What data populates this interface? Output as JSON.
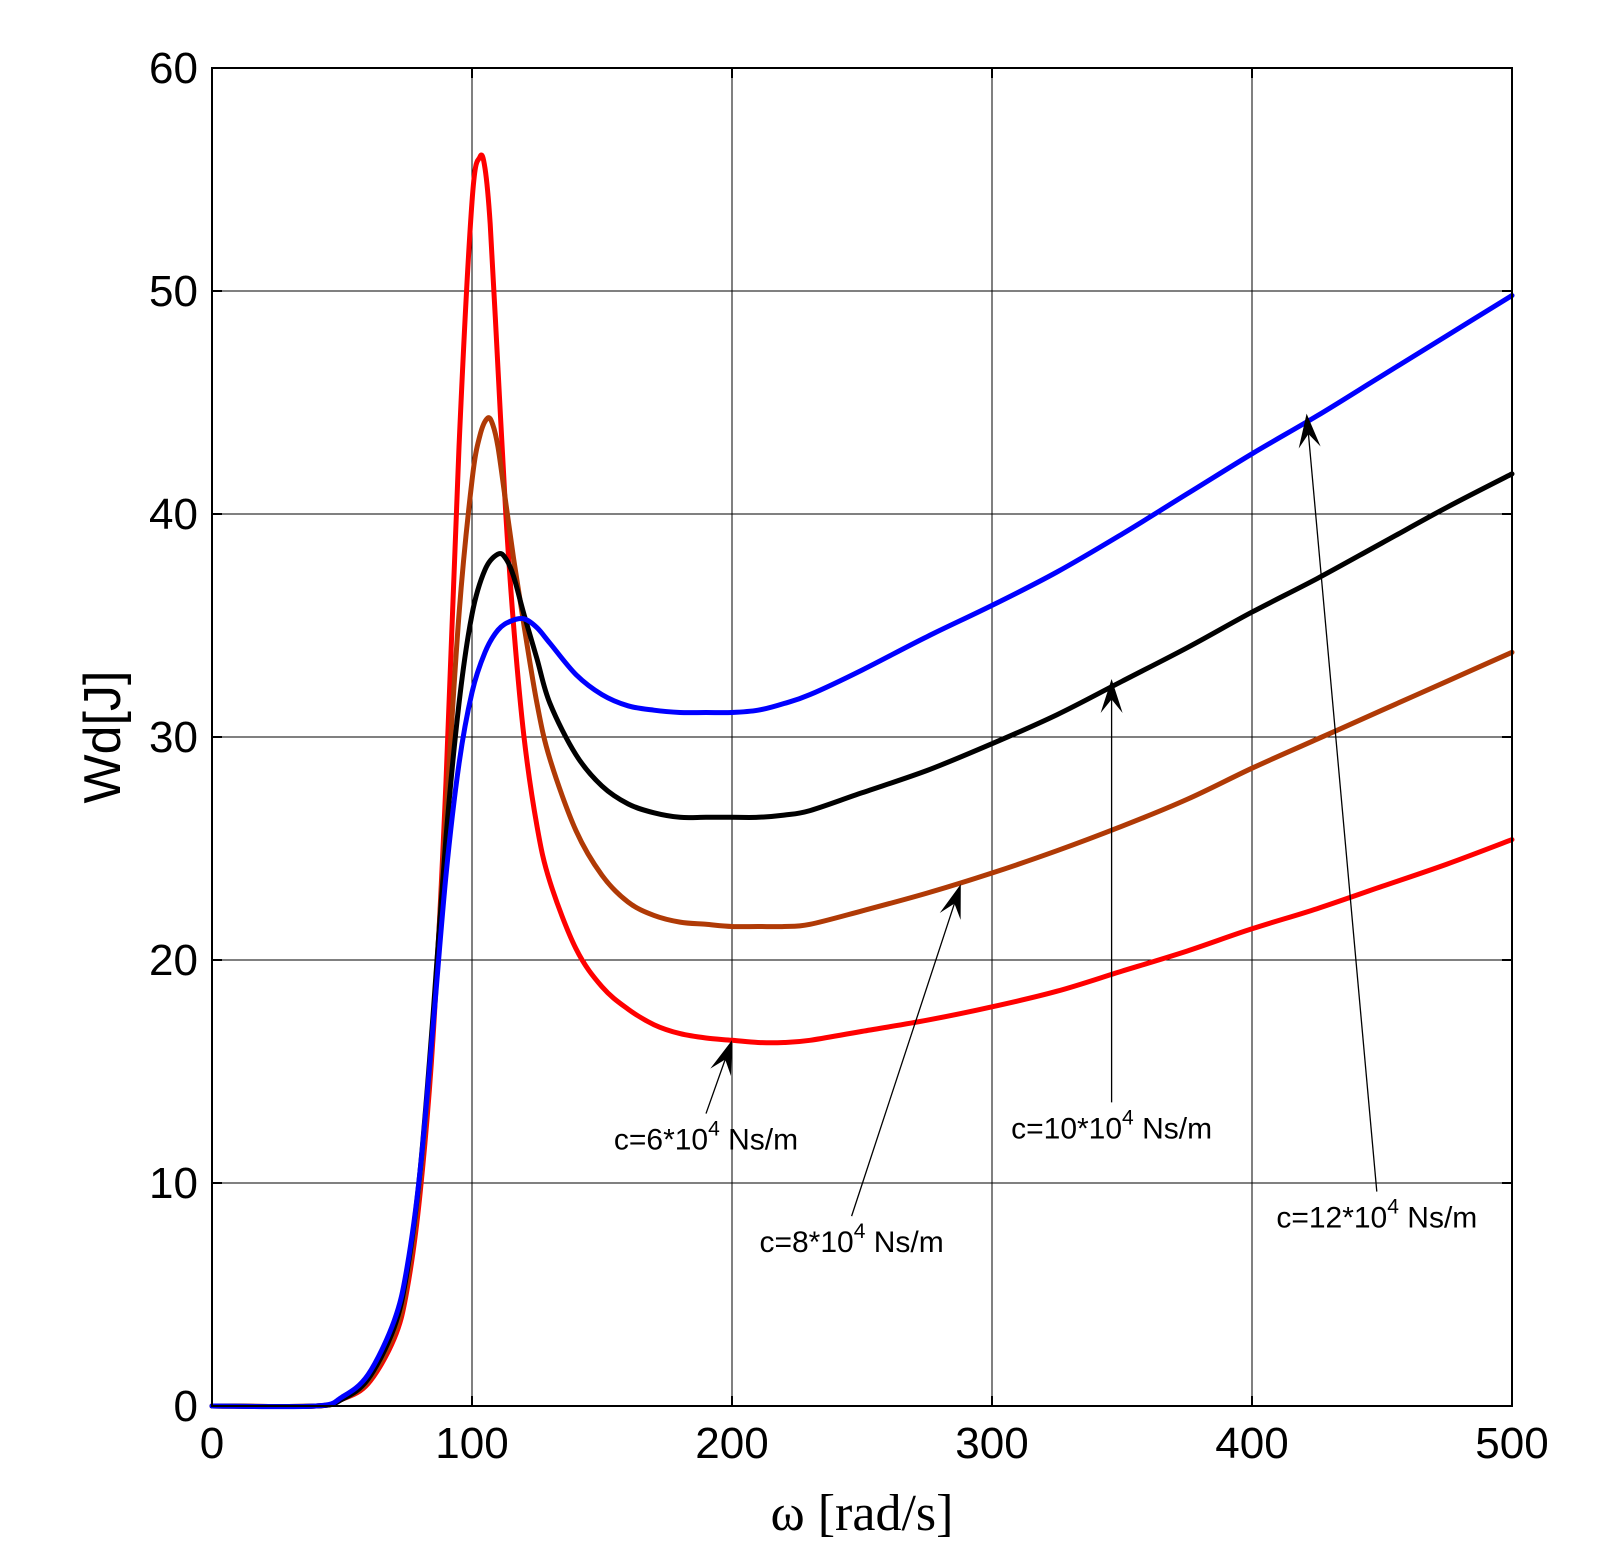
{
  "chart_data": {
    "type": "line",
    "title": "",
    "xlabel": "ω [rad/s]",
    "ylabel": "Wd[J]",
    "xlim": [
      0,
      500
    ],
    "ylim": [
      0,
      60
    ],
    "xticks": [
      "0",
      "100",
      "200",
      "300",
      "400",
      "500"
    ],
    "yticks": [
      "0",
      "10",
      "20",
      "30",
      "40",
      "50",
      "60"
    ],
    "grid": true,
    "legend": "none",
    "series": [
      {
        "name": "c=6*10^4 Ns/m",
        "color": "#ff0000",
        "x": [
          0,
          40,
          50,
          60,
          70,
          75,
          80,
          85,
          90,
          95,
          100,
          103,
          105,
          107,
          110,
          113,
          116,
          120,
          125,
          130,
          140,
          150,
          160,
          170,
          180,
          190,
          200,
          210,
          220,
          230,
          250,
          275,
          300,
          325,
          350,
          375,
          400,
          425,
          450,
          475,
          500
        ],
        "y": [
          0,
          0,
          0.3,
          1.0,
          3.0,
          5.2,
          9.5,
          16.5,
          28.0,
          43.0,
          54.0,
          56.0,
          55.5,
          53.0,
          46.5,
          40.0,
          35.0,
          30.0,
          26.0,
          23.5,
          20.5,
          18.8,
          17.8,
          17.1,
          16.7,
          16.5,
          16.4,
          16.3,
          16.3,
          16.4,
          16.8,
          17.3,
          17.9,
          18.6,
          19.5,
          20.4,
          21.4,
          22.3,
          23.3,
          24.3,
          25.4
        ]
      },
      {
        "name": "c=8*10^4 Ns/m",
        "color": "#b03a06",
        "x": [
          0,
          40,
          50,
          60,
          70,
          75,
          80,
          85,
          90,
          95,
          100,
          103,
          106,
          108,
          110,
          113,
          116,
          120,
          125,
          130,
          140,
          150,
          160,
          170,
          180,
          190,
          200,
          210,
          220,
          230,
          250,
          275,
          300,
          325,
          350,
          375,
          400,
          425,
          450,
          475,
          500
        ],
        "y": [
          0,
          0,
          0.3,
          1.1,
          3.2,
          5.5,
          10.0,
          17.0,
          26.5,
          35.5,
          41.5,
          43.5,
          44.3,
          44.0,
          43.0,
          40.5,
          38.0,
          35.0,
          31.5,
          29.0,
          25.8,
          23.8,
          22.6,
          22.0,
          21.7,
          21.6,
          21.5,
          21.5,
          21.5,
          21.6,
          22.2,
          23.0,
          23.9,
          24.9,
          26.0,
          27.2,
          28.6,
          29.9,
          31.2,
          32.5,
          33.8
        ]
      },
      {
        "name": "c=10*10^4 Ns/m",
        "color": "#000000",
        "x": [
          0,
          40,
          50,
          60,
          70,
          75,
          80,
          85,
          90,
          95,
          100,
          105,
          110,
          113,
          116,
          120,
          125,
          130,
          140,
          150,
          160,
          170,
          180,
          190,
          200,
          210,
          220,
          230,
          250,
          275,
          300,
          325,
          350,
          375,
          400,
          425,
          450,
          475,
          500
        ],
        "y": [
          0,
          0,
          0.3,
          1.2,
          3.5,
          6.0,
          10.5,
          17.5,
          25.5,
          31.5,
          35.5,
          37.5,
          38.2,
          38.0,
          37.2,
          35.5,
          33.5,
          31.5,
          29.2,
          27.8,
          27.0,
          26.6,
          26.4,
          26.4,
          26.4,
          26.4,
          26.5,
          26.7,
          27.5,
          28.5,
          29.7,
          31.0,
          32.5,
          34.0,
          35.6,
          37.1,
          38.7,
          40.3,
          41.8
        ]
      },
      {
        "name": "c=12*10^4 Ns/m",
        "color": "#0000ff",
        "x": [
          0,
          40,
          50,
          60,
          70,
          75,
          80,
          85,
          90,
          95,
          100,
          105,
          110,
          115,
          120,
          125,
          130,
          140,
          150,
          160,
          170,
          180,
          190,
          200,
          210,
          220,
          230,
          250,
          275,
          300,
          325,
          350,
          375,
          400,
          425,
          450,
          475,
          500
        ],
        "y": [
          0,
          0,
          0.4,
          1.4,
          3.8,
          6.2,
          10.5,
          17.0,
          23.8,
          28.8,
          32.0,
          33.8,
          34.8,
          35.2,
          35.3,
          34.9,
          34.2,
          32.8,
          31.9,
          31.4,
          31.2,
          31.1,
          31.1,
          31.1,
          31.2,
          31.5,
          31.9,
          33.0,
          34.5,
          35.9,
          37.4,
          39.1,
          40.9,
          42.7,
          44.4,
          46.2,
          48.0,
          49.8
        ]
      }
    ],
    "annotations": [
      {
        "label_base": "c=6*10",
        "label_sup": "4",
        "label_tail": " Ns/m",
        "target": [
          200,
          16.4
        ],
        "text_at": [
          190,
          11.5
        ]
      },
      {
        "label_base": "c=8*10",
        "label_sup": "4",
        "label_tail": " Ns/m",
        "target": [
          288,
          23.4
        ],
        "text_at": [
          246,
          6.9
        ]
      },
      {
        "label_base": "c=10*10",
        "label_sup": "4",
        "label_tail": " Ns/m",
        "target": [
          346,
          32.6
        ],
        "text_at": [
          346,
          12.0
        ]
      },
      {
        "label_base": "c=12*10",
        "label_sup": "4",
        "label_tail": " Ns/m",
        "target": [
          421,
          44.5
        ],
        "text_at": [
          448,
          8.0
        ]
      }
    ]
  }
}
